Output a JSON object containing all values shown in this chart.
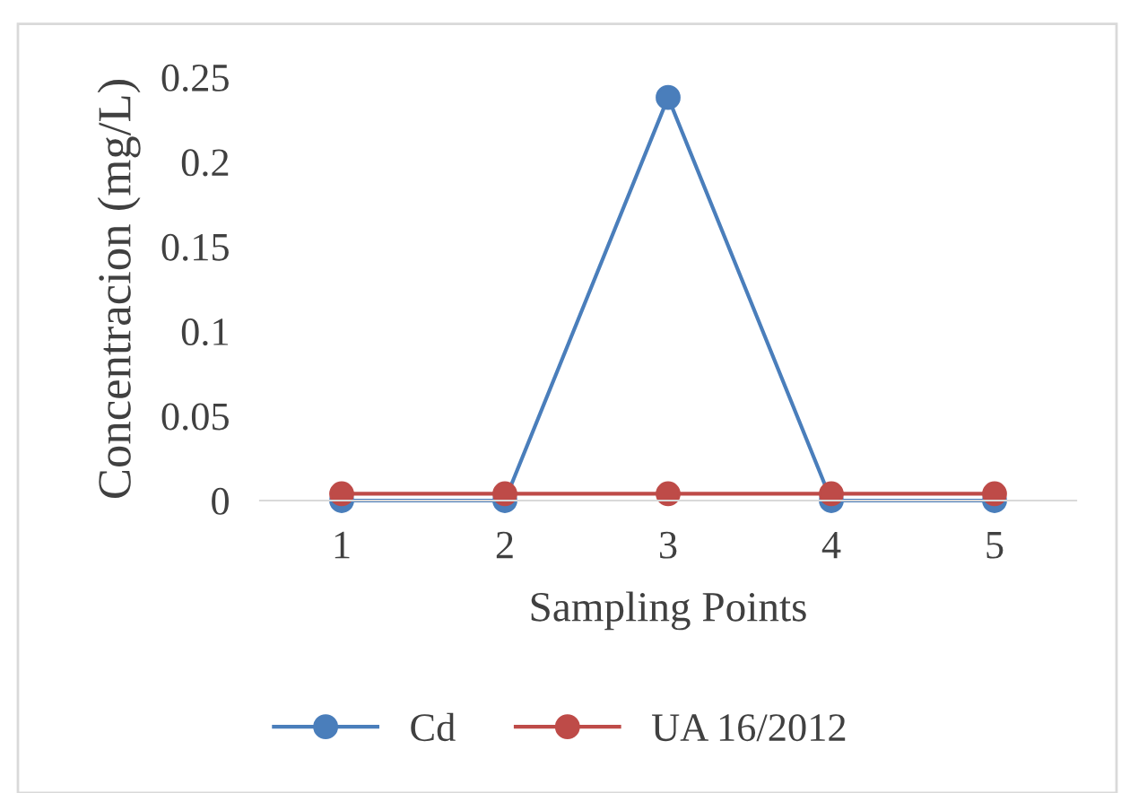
{
  "chart_data": {
    "type": "line",
    "xlabel": "Sampling Points",
    "ylabel": "Concentracion (mg/L)",
    "categories": [
      "1",
      "2",
      "3",
      "4",
      "5"
    ],
    "series": [
      {
        "name": "Cd",
        "color": "#4a7ebb",
        "values": [
          0,
          0,
          0.238,
          0,
          0
        ]
      },
      {
        "name": "UA 16/2012",
        "color": "#be4b48",
        "values": [
          0.004,
          0.004,
          0.004,
          0.004,
          0.004
        ]
      }
    ],
    "ylim": [
      0,
      0.25
    ],
    "yticks": [
      0,
      0.05,
      0.1,
      0.15,
      0.2,
      0.25
    ],
    "grid": false,
    "legend": "bottom",
    "marker": "circle",
    "line_style": "solid"
  }
}
